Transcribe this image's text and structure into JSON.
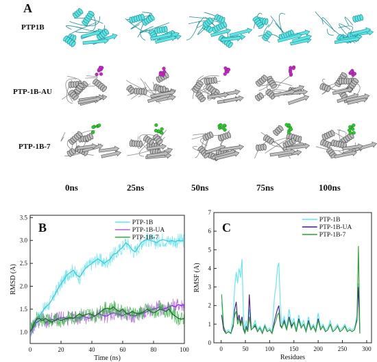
{
  "panel_a": {
    "letter": "A",
    "rows": [
      {
        "label": "PTP1B",
        "style": "cyan",
        "ligand": ""
      },
      {
        "label": "PTP-1B-AU",
        "style": "gray",
        "ligand": "#cc22cc"
      },
      {
        "label": "PTP-1B-7",
        "style": "gray",
        "ligand": "#22cc22"
      }
    ],
    "times": [
      "0ns",
      "25ns",
      "50ns",
      "75ns",
      "100ns"
    ],
    "colors": {
      "cyan_fill": "#5fe3e3",
      "cyan_dark": "#1b8f96",
      "gray_fill": "#bdbdbd",
      "gray_dark": "#505050"
    }
  },
  "chart_data": [
    {
      "type": "line",
      "panel_letter": "B",
      "xlabel": "Time (ns)",
      "ylabel": "RMSD (A)",
      "xlim": [
        0,
        100
      ],
      "ylim": [
        0.75,
        3.55
      ],
      "xticks": [
        0,
        20,
        40,
        60,
        80,
        100
      ],
      "yticks": [
        1.0,
        1.5,
        2.0,
        2.5,
        3.0,
        3.5
      ],
      "ytick_labels": [
        "1.0",
        "1.5",
        "2.0",
        "2.5",
        "3.0",
        "3.5"
      ],
      "legend_position": "top-right",
      "series": [
        {
          "name": "PTP-1B",
          "color": "#5be6f2",
          "smooth_color": "#3ec8d8",
          "x": [
            0,
            2,
            4,
            6,
            8,
            10,
            12,
            14,
            16,
            18,
            20,
            22,
            24,
            26,
            28,
            30,
            32,
            34,
            36,
            38,
            40,
            42,
            44,
            46,
            48,
            50,
            52,
            54,
            56,
            58,
            60,
            62,
            64,
            66,
            68,
            70,
            72,
            74,
            76,
            78,
            80,
            82,
            84,
            86,
            88,
            90,
            92,
            94,
            96,
            98,
            100
          ],
          "values": [
            1.0,
            1.12,
            1.25,
            1.35,
            1.45,
            1.55,
            1.6,
            1.7,
            1.82,
            1.95,
            2.05,
            2.15,
            2.25,
            2.3,
            2.35,
            2.25,
            2.2,
            2.3,
            2.4,
            2.45,
            2.5,
            2.55,
            2.6,
            2.55,
            2.5,
            2.55,
            2.6,
            2.7,
            2.72,
            2.8,
            2.85,
            2.95,
            2.9,
            2.8,
            2.75,
            2.85,
            2.95,
            3.0,
            3.02,
            3.0,
            2.98,
            2.95,
            3.0,
            3.02,
            3.0,
            2.98,
            3.0,
            2.97,
            3.0,
            2.99,
            3.0
          ]
        },
        {
          "name": "PTP-1B-UA",
          "color": "#b05ee0",
          "smooth_color": "#8a2be2",
          "x": [
            0,
            2,
            4,
            6,
            8,
            10,
            12,
            14,
            16,
            18,
            20,
            22,
            24,
            26,
            28,
            30,
            32,
            34,
            36,
            38,
            40,
            42,
            44,
            46,
            48,
            50,
            52,
            54,
            56,
            58,
            60,
            62,
            64,
            66,
            68,
            70,
            72,
            74,
            76,
            78,
            80,
            82,
            84,
            86,
            88,
            90,
            92,
            94,
            96,
            98,
            100
          ],
          "values": [
            1.0,
            1.1,
            1.2,
            1.25,
            1.3,
            1.2,
            1.25,
            1.28,
            1.25,
            1.3,
            1.3,
            1.32,
            1.28,
            1.3,
            1.3,
            1.32,
            1.3,
            1.35,
            1.33,
            1.3,
            1.32,
            1.35,
            1.4,
            1.38,
            1.35,
            1.35,
            1.4,
            1.42,
            1.4,
            1.38,
            1.35,
            1.4,
            1.38,
            1.36,
            1.35,
            1.38,
            1.4,
            1.42,
            1.45,
            1.48,
            1.5,
            1.52,
            1.55,
            1.5,
            1.52,
            1.55,
            1.58,
            1.55,
            1.6,
            1.58,
            1.6
          ]
        },
        {
          "name": "PTP-1B-7",
          "color": "#2bb03a",
          "smooth_color": "#1d6e27",
          "x": [
            0,
            2,
            4,
            6,
            8,
            10,
            12,
            14,
            16,
            18,
            20,
            22,
            24,
            26,
            28,
            30,
            32,
            34,
            36,
            38,
            40,
            42,
            44,
            46,
            48,
            50,
            52,
            54,
            56,
            58,
            60,
            62,
            64,
            66,
            68,
            70,
            72,
            74,
            76,
            78,
            80,
            82,
            84,
            86,
            88,
            90,
            92,
            94,
            96,
            98,
            100
          ],
          "values": [
            1.0,
            1.15,
            1.28,
            1.3,
            1.25,
            1.3,
            1.25,
            1.22,
            1.25,
            1.28,
            1.25,
            1.28,
            1.3,
            1.32,
            1.3,
            1.35,
            1.4,
            1.35,
            1.38,
            1.4,
            1.38,
            1.35,
            1.4,
            1.45,
            1.5,
            1.52,
            1.5,
            1.55,
            1.48,
            1.45,
            1.5,
            1.42,
            1.4,
            1.45,
            1.42,
            1.4,
            1.42,
            1.45,
            1.5,
            1.45,
            1.42,
            1.45,
            1.5,
            1.48,
            1.45,
            1.5,
            1.4,
            1.35,
            1.3,
            1.28,
            1.3
          ]
        }
      ]
    },
    {
      "type": "line",
      "panel_letter": "C",
      "xlabel": "Residues",
      "ylabel": "RMSF (A)",
      "xlim": [
        -15,
        310
      ],
      "ylim": [
        0,
        7
      ],
      "xticks": [
        0,
        50,
        100,
        150,
        200,
        250,
        300
      ],
      "yticks": [
        0,
        1,
        2,
        3,
        4,
        5,
        6,
        7
      ],
      "legend_position": "top-right",
      "series": [
        {
          "name": "PTP-1B",
          "color": "#5be6f2",
          "x": [
            1,
            5,
            10,
            15,
            20,
            25,
            28,
            31,
            34,
            37,
            40,
            43,
            46,
            49,
            52,
            55,
            58,
            62,
            66,
            70,
            75,
            80,
            85,
            90,
            95,
            100,
            105,
            110,
            113,
            116,
            119,
            122,
            125,
            130,
            135,
            140,
            145,
            150,
            155,
            160,
            165,
            170,
            175,
            180,
            185,
            190,
            195,
            200,
            205,
            210,
            215,
            220,
            225,
            230,
            235,
            240,
            245,
            250,
            255,
            260,
            265,
            270,
            275,
            280,
            283,
            286
          ],
          "values": [
            2.2,
            0.8,
            0.6,
            0.7,
            0.5,
            1.5,
            3.0,
            3.8,
            3.2,
            4.0,
            3.5,
            4.5,
            1.5,
            0.6,
            1.2,
            0.7,
            1.8,
            0.8,
            0.9,
            1.2,
            0.7,
            0.9,
            0.6,
            1.0,
            0.7,
            0.8,
            0.6,
            2.5,
            3.0,
            4.0,
            4.3,
            2.0,
            1.0,
            1.4,
            0.8,
            1.8,
            1.0,
            1.3,
            0.7,
            1.5,
            0.9,
            1.2,
            0.7,
            1.4,
            0.8,
            1.0,
            0.7,
            1.6,
            0.8,
            1.0,
            0.7,
            0.8,
            1.2,
            0.7,
            0.8,
            1.0,
            0.7,
            0.8,
            1.0,
            0.7,
            0.8,
            0.7,
            0.8,
            1.5,
            3.2,
            0.5
          ]
        },
        {
          "name": "PTP-1B-UA",
          "color": "#3a1a8a",
          "x": [
            1,
            5,
            10,
            15,
            20,
            25,
            28,
            31,
            34,
            37,
            40,
            43,
            46,
            49,
            52,
            55,
            58,
            62,
            66,
            70,
            75,
            80,
            85,
            90,
            95,
            100,
            105,
            110,
            113,
            116,
            119,
            122,
            125,
            130,
            135,
            140,
            145,
            150,
            155,
            160,
            165,
            170,
            175,
            180,
            185,
            190,
            195,
            200,
            205,
            210,
            215,
            220,
            225,
            230,
            235,
            240,
            245,
            250,
            255,
            260,
            265,
            270,
            275,
            280,
            283,
            286
          ],
          "values": [
            1.5,
            0.7,
            0.5,
            0.6,
            0.5,
            0.9,
            1.8,
            2.2,
            1.2,
            1.5,
            1.0,
            1.4,
            0.8,
            0.5,
            0.9,
            0.6,
            2.6,
            0.7,
            0.8,
            0.9,
            0.6,
            0.8,
            0.5,
            0.9,
            0.6,
            0.7,
            0.5,
            1.2,
            1.5,
            1.8,
            2.0,
            1.0,
            0.8,
            1.2,
            0.7,
            1.4,
            0.9,
            1.1,
            0.6,
            1.3,
            0.8,
            1.0,
            0.6,
            1.2,
            0.7,
            0.9,
            0.6,
            1.3,
            0.7,
            0.9,
            0.6,
            0.7,
            1.0,
            0.6,
            0.7,
            0.9,
            0.6,
            0.7,
            0.9,
            0.6,
            0.7,
            0.6,
            0.7,
            1.2,
            3.0,
            0.5
          ]
        },
        {
          "name": "PTP-1B-7",
          "color": "#2ca02c",
          "x": [
            1,
            5,
            10,
            15,
            20,
            25,
            28,
            31,
            34,
            37,
            40,
            43,
            46,
            49,
            52,
            55,
            58,
            62,
            66,
            70,
            75,
            80,
            85,
            90,
            95,
            100,
            105,
            110,
            113,
            116,
            119,
            122,
            125,
            130,
            135,
            140,
            145,
            150,
            155,
            160,
            165,
            170,
            175,
            180,
            185,
            190,
            195,
            200,
            205,
            210,
            215,
            220,
            225,
            230,
            235,
            240,
            245,
            250,
            255,
            260,
            265,
            270,
            275,
            280,
            283,
            286
          ],
          "values": [
            2.6,
            0.9,
            0.5,
            0.6,
            0.5,
            1.0,
            1.5,
            1.7,
            1.0,
            1.3,
            0.9,
            1.2,
            0.7,
            0.5,
            0.8,
            0.6,
            1.4,
            0.7,
            0.8,
            1.0,
            0.6,
            0.8,
            0.5,
            0.9,
            0.6,
            0.7,
            0.5,
            1.0,
            1.2,
            1.5,
            1.6,
            0.9,
            0.8,
            1.1,
            0.7,
            1.3,
            0.8,
            1.1,
            0.6,
            1.2,
            0.8,
            1.0,
            0.6,
            1.1,
            0.7,
            0.9,
            0.6,
            1.2,
            0.7,
            0.9,
            0.6,
            0.7,
            1.0,
            0.6,
            0.7,
            0.9,
            0.6,
            0.7,
            0.9,
            0.6,
            0.7,
            0.6,
            0.7,
            1.3,
            5.2,
            0.5
          ]
        }
      ]
    }
  ]
}
